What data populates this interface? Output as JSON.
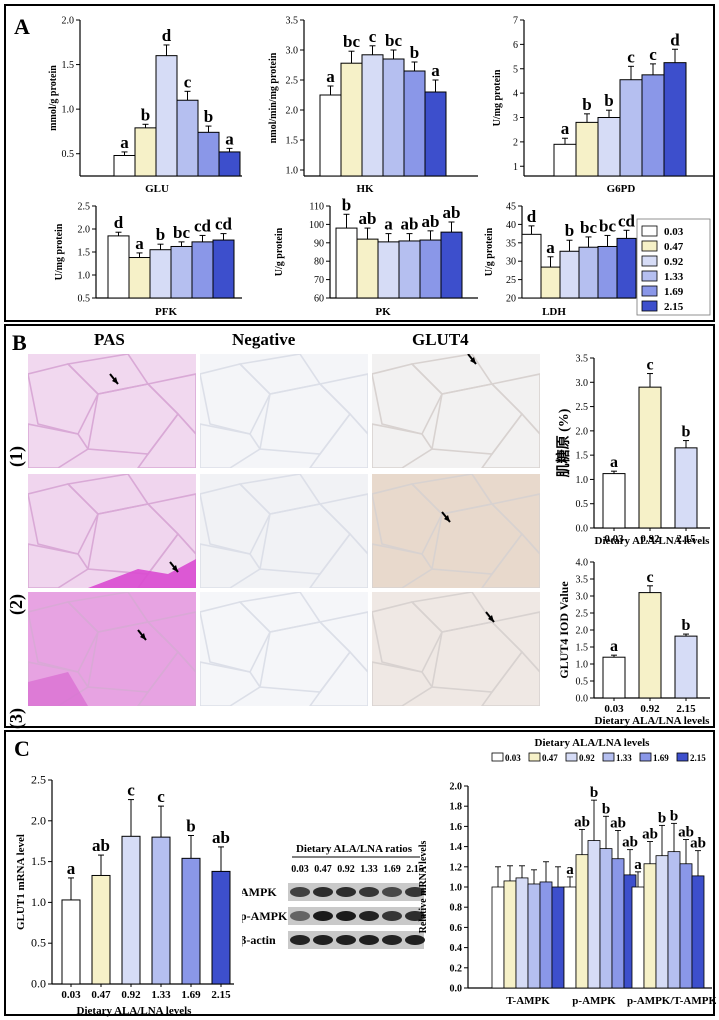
{
  "panel_labels": {
    "a": "A",
    "b": "B",
    "c": "C"
  },
  "colors": [
    "#ffffff",
    "#f6f1c8",
    "#d6dcf6",
    "#b5bff0",
    "#8a97e8",
    "#3d4fcc"
  ],
  "legend_levels": [
    "0.03",
    "0.47",
    "0.92",
    "1.33",
    "1.69",
    "2.15"
  ],
  "panel_b": {
    "columns": [
      "PAS",
      "Negative",
      "GLUT4"
    ],
    "rows": [
      "(1)",
      "(2)",
      "(3)"
    ]
  },
  "western": {
    "title": "Dietary ALA/LNA ratios",
    "lanes": [
      "0.03",
      "0.47",
      "0.92",
      "1.33",
      "1.69",
      "2.15"
    ],
    "bands": [
      "AMPK",
      "p-AMPK",
      "β-actin"
    ]
  },
  "chart_data": [
    {
      "id": "glu",
      "type": "bar",
      "title": "",
      "xlabel": "GLU",
      "ylabel": "mmol/g protein",
      "ylim": [
        0.25,
        2.0
      ],
      "ticks": [
        0.5,
        1.0,
        1.5,
        2.0
      ],
      "tick_labels": [
        "0.5",
        "1.0",
        "1.5",
        "2.0"
      ],
      "values": [
        0.48,
        0.79,
        1.6,
        1.1,
        0.74,
        0.52
      ],
      "errors": [
        0.04,
        0.04,
        0.12,
        0.1,
        0.07,
        0.04
      ],
      "letters": [
        "a",
        "b",
        "d",
        "c",
        "b",
        "a"
      ]
    },
    {
      "id": "hk",
      "type": "bar",
      "xlabel": "HK",
      "ylabel": "nmol/min/mg protein",
      "ylim": [
        0.9,
        3.5
      ],
      "ticks": [
        1.0,
        1.5,
        2.0,
        2.5,
        3.0,
        3.5
      ],
      "tick_labels": [
        "1.0",
        "1.5",
        "2.0",
        "2.5",
        "3.0",
        "3.5"
      ],
      "values": [
        2.25,
        2.78,
        2.92,
        2.85,
        2.65,
        2.3
      ],
      "errors": [
        0.15,
        0.2,
        0.15,
        0.15,
        0.15,
        0.2
      ],
      "letters": [
        "a",
        "bc",
        "c",
        "bc",
        "b",
        "a"
      ]
    },
    {
      "id": "g6pd",
      "type": "bar",
      "xlabel": "G6PD",
      "ylabel": "U/mg protein",
      "ylim": [
        0.6,
        7
      ],
      "ticks": [
        1,
        2,
        3,
        4,
        5,
        6,
        7
      ],
      "tick_labels": [
        "1",
        "2",
        "3",
        "4",
        "5",
        "6",
        "7"
      ],
      "values": [
        1.9,
        2.8,
        3.0,
        4.55,
        4.75,
        5.25
      ],
      "errors": [
        0.25,
        0.35,
        0.3,
        0.55,
        0.45,
        0.55
      ],
      "letters": [
        "a",
        "b",
        "b",
        "c",
        "c",
        "d"
      ]
    },
    {
      "id": "pfk",
      "type": "bar",
      "xlabel": "PFK",
      "ylabel": "U/mg protein",
      "ylim": [
        0.5,
        2.5
      ],
      "ticks": [
        0.5,
        1.0,
        1.5,
        2.0,
        2.5
      ],
      "tick_labels": [
        "0.5",
        "1.0",
        "1.5",
        "2.0",
        "2.5"
      ],
      "values": [
        1.85,
        1.38,
        1.55,
        1.62,
        1.72,
        1.76
      ],
      "errors": [
        0.08,
        0.1,
        0.12,
        0.1,
        0.14,
        0.14
      ],
      "letters": [
        "d",
        "a",
        "b",
        "bc",
        "cd",
        "cd"
      ]
    },
    {
      "id": "pk",
      "type": "bar",
      "xlabel": "PK",
      "ylabel": "U/g protein",
      "ylim": [
        60,
        110
      ],
      "ticks": [
        60,
        70,
        80,
        90,
        100,
        110
      ],
      "tick_labels": [
        "60",
        "70",
        "80",
        "90",
        "100",
        "110"
      ],
      "values": [
        98.0,
        92.0,
        90.5,
        91.0,
        91.5,
        95.8
      ],
      "errors": [
        7.5,
        6.0,
        4.5,
        4.0,
        5.0,
        5.5
      ],
      "letters": [
        "b",
        "ab",
        "a",
        "ab",
        "ab",
        "ab"
      ]
    },
    {
      "id": "ldh",
      "type": "bar",
      "xlabel": "LDH",
      "ylabel": "U/g protein",
      "ylim": [
        20,
        45
      ],
      "ticks": [
        20,
        25,
        30,
        35,
        40,
        45
      ],
      "tick_labels": [
        "20",
        "25",
        "30",
        "35",
        "40",
        "45"
      ],
      "values": [
        37.3,
        28.4,
        32.7,
        33.8,
        34.0,
        36.2
      ],
      "errors": [
        2.3,
        2.8,
        3.0,
        2.8,
        3.0,
        2.2
      ],
      "letters": [
        "d",
        "a",
        "b",
        "bc",
        "bc",
        "cd"
      ]
    },
    {
      "id": "glycogen",
      "type": "bar",
      "xlabel": "Dietary ALA/LNA levels",
      "ylabel": "肌糖原 (%)",
      "categories": [
        "0.03",
        "0.92",
        "2.15"
      ],
      "color_index": [
        0,
        1,
        2
      ],
      "ylim": [
        0,
        3.5
      ],
      "ticks": [
        0.0,
        0.5,
        1.0,
        1.5,
        2.0,
        2.5,
        3.0,
        3.5
      ],
      "tick_labels": [
        "0.0",
        "0.5",
        "1.0",
        "1.5",
        "2.0",
        "2.5",
        "3.0",
        "3.5"
      ],
      "values": [
        1.12,
        2.9,
        1.65
      ],
      "errors": [
        0.05,
        0.28,
        0.15
      ],
      "letters": [
        "a",
        "c",
        "b"
      ]
    },
    {
      "id": "glut4_iod",
      "type": "bar",
      "xlabel": "Dietary ALA/LNA levels",
      "ylabel": "GLUT4 IOD Value",
      "categories": [
        "0.03",
        "0.92",
        "2.15"
      ],
      "color_index": [
        0,
        1,
        2
      ],
      "ylim": [
        0,
        4.0
      ],
      "ticks": [
        0.0,
        0.5,
        1.0,
        1.5,
        2.0,
        2.5,
        3.0,
        3.5,
        4.0
      ],
      "tick_labels": [
        "0.0",
        "0.5",
        "1.0",
        "1.5",
        "2.0",
        "2.5",
        "3.0",
        "3.5",
        "4.0"
      ],
      "values": [
        1.2,
        3.1,
        1.82
      ],
      "errors": [
        0.06,
        0.2,
        0.06
      ],
      "letters": [
        "a",
        "c",
        "b"
      ]
    },
    {
      "id": "glut1",
      "type": "bar",
      "xlabel": "Dietary ALA/LNA levels",
      "ylabel": "GLUT1 mRNA level",
      "categories": [
        "0.03",
        "0.47",
        "0.92",
        "1.33",
        "1.69",
        "2.15"
      ],
      "ylim": [
        0,
        2.5
      ],
      "ticks": [
        0.0,
        0.5,
        1.0,
        1.5,
        2.0,
        2.5
      ],
      "tick_labels": [
        "0.0",
        "0.5",
        "1.0",
        "1.5",
        "2.0",
        "2.5"
      ],
      "values": [
        1.03,
        1.33,
        1.81,
        1.8,
        1.54,
        1.38
      ],
      "errors": [
        0.27,
        0.25,
        0.45,
        0.38,
        0.28,
        0.3
      ],
      "letters": [
        "a",
        "ab",
        "c",
        "c",
        "b",
        "ab"
      ]
    },
    {
      "id": "ampk",
      "type": "bar",
      "xlabel": "",
      "ylabel": "Relative mRNA levels",
      "legend_title": "Dietary ALA/LNA levels",
      "groups": [
        "T-AMPK",
        "p-AMPK",
        "p-AMPK/T-AMPK"
      ],
      "ylim": [
        0,
        2.0
      ],
      "ticks": [
        0.0,
        0.2,
        0.4,
        0.6,
        0.8,
        1.0,
        1.2,
        1.4,
        1.6,
        1.8,
        2.0
      ],
      "tick_labels": [
        "0.0",
        "0.2",
        "0.4",
        "0.6",
        "0.8",
        "1.0",
        "1.2",
        "1.4",
        "1.6",
        "1.8",
        "2.0"
      ],
      "series": [
        {
          "name": "0.03",
          "values": [
            1.0,
            1.0,
            1.0
          ],
          "errors": [
            0.2,
            0.1,
            0.15
          ]
        },
        {
          "name": "0.47",
          "values": [
            1.06,
            1.32,
            1.23
          ],
          "errors": [
            0.15,
            0.25,
            0.22
          ]
        },
        {
          "name": "0.92",
          "values": [
            1.09,
            1.46,
            1.31
          ],
          "errors": [
            0.12,
            0.4,
            0.3
          ]
        },
        {
          "name": "1.33",
          "values": [
            1.03,
            1.38,
            1.35
          ],
          "errors": [
            0.14,
            0.32,
            0.28
          ]
        },
        {
          "name": "1.69",
          "values": [
            1.05,
            1.28,
            1.23
          ],
          "errors": [
            0.2,
            0.28,
            0.24
          ]
        },
        {
          "name": "2.15",
          "values": [
            1.0,
            1.12,
            1.11
          ],
          "errors": [
            0.2,
            0.25,
            0.25
          ]
        }
      ],
      "letters": [
        [
          "",
          "",
          "",
          "",
          "",
          ""
        ],
        [
          "a",
          "ab",
          "b",
          "b",
          "ab",
          "ab"
        ],
        [
          "a",
          "ab",
          "b",
          "b",
          "ab",
          "ab"
        ]
      ]
    }
  ]
}
